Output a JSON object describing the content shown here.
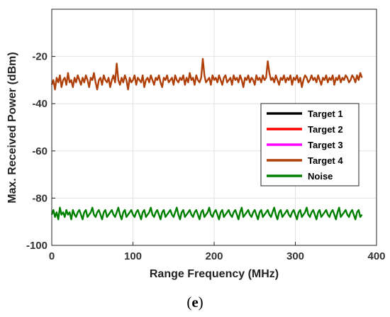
{
  "chart_data": {
    "type": "line",
    "xlabel": "Range Frequency (MHz)",
    "ylabel": "Max. Received Power (dBm)",
    "xlim": [
      0,
      400
    ],
    "ylim": [
      -100,
      0
    ],
    "xticks": [
      0,
      100,
      200,
      300,
      400
    ],
    "yticks": [
      -100,
      -80,
      -60,
      -40,
      -20
    ],
    "grid": true,
    "legend_position": "right",
    "series": [
      {
        "name": "Target 1",
        "color": "#000000",
        "values": []
      },
      {
        "name": "Target 2",
        "color": "#ff0000",
        "values": []
      },
      {
        "name": "Target 3",
        "color": "#ff00ff",
        "values": []
      },
      {
        "name": "Target 4",
        "color": "#b0400a",
        "x_step": 2,
        "values": [
          -32,
          -30,
          -34,
          -29,
          -31,
          -28,
          -33,
          -30,
          -29,
          -32,
          -27,
          -31,
          -30,
          -33,
          -29,
          -31,
          -28,
          -30,
          -32,
          -29,
          -31,
          -28,
          -30,
          -33,
          -29,
          -30,
          -27,
          -31,
          -34,
          -30,
          -29,
          -32,
          -28,
          -30,
          -31,
          -29,
          -33,
          -30,
          -28,
          -31,
          -23,
          -30,
          -32,
          -29,
          -31,
          -28,
          -30,
          -34,
          -29,
          -31,
          -30,
          -28,
          -32,
          -29,
          -30,
          -31,
          -28,
          -33,
          -30,
          -29,
          -31,
          -28,
          -30,
          -32,
          -29,
          -30,
          -28,
          -31,
          -33,
          -29,
          -30,
          -28,
          -31,
          -30,
          -29,
          -32,
          -28,
          -30,
          -31,
          -29,
          -30,
          -28,
          -32,
          -29,
          -31,
          -27,
          -30,
          -29,
          -32,
          -28,
          -30,
          -31,
          -29,
          -21,
          -28,
          -31,
          -30,
          -29,
          -32,
          -28,
          -30,
          -29,
          -31,
          -28,
          -30,
          -32,
          -29,
          -28,
          -31,
          -30,
          -29,
          -32,
          -28,
          -30,
          -29,
          -31,
          -28,
          -30,
          -33,
          -29,
          -30,
          -28,
          -31,
          -29,
          -30,
          -32,
          -28,
          -30,
          -29,
          -31,
          -28,
          -30,
          -29,
          -22,
          -27,
          -30,
          -29,
          -31,
          -28,
          -30,
          -32,
          -29,
          -30,
          -28,
          -31,
          -29,
          -30,
          -28,
          -32,
          -29,
          -30,
          -28,
          -31,
          -29,
          -33,
          -30,
          -28,
          -29,
          -31,
          -30,
          -28,
          -30,
          -29,
          -31,
          -28,
          -30,
          -32,
          -29,
          -30,
          -28,
          -31,
          -29,
          -30,
          -28,
          -32,
          -29,
          -30,
          -28,
          -31,
          -29,
          -30,
          -28,
          -29,
          -31,
          -30,
          -28,
          -29,
          -31,
          -28,
          -30,
          -27,
          -29
        ]
      },
      {
        "name": "Noise",
        "color": "#008000",
        "x_step": 2,
        "values": [
          -87,
          -85,
          -88,
          -86,
          -89,
          -84,
          -87,
          -86,
          -88,
          -85,
          -87,
          -86,
          -89,
          -85,
          -87,
          -88,
          -86,
          -85,
          -87,
          -89,
          -86,
          -85,
          -88,
          -87,
          -86,
          -84,
          -87,
          -88,
          -86,
          -85,
          -87,
          -89,
          -86,
          -85,
          -88,
          -87,
          -86,
          -85,
          -87,
          -88,
          -86,
          -84,
          -87,
          -89,
          -86,
          -85,
          -88,
          -87,
          -86,
          -85,
          -87,
          -88,
          -86,
          -85,
          -87,
          -89,
          -86,
          -85,
          -88,
          -87,
          -86,
          -84,
          -87,
          -88,
          -86,
          -85,
          -87,
          -89,
          -86,
          -85,
          -88,
          -87,
          -86,
          -85,
          -87,
          -88,
          -86,
          -84,
          -87,
          -89,
          -86,
          -85,
          -88,
          -87,
          -86,
          -85,
          -87,
          -88,
          -86,
          -85,
          -87,
          -89,
          -86,
          -85,
          -88,
          -87,
          -86,
          -84,
          -87,
          -88,
          -86,
          -85,
          -87,
          -89,
          -86,
          -85,
          -88,
          -87,
          -86,
          -85,
          -87,
          -88,
          -86,
          -85,
          -87,
          -89,
          -86,
          -84,
          -88,
          -87,
          -86,
          -85,
          -87,
          -88,
          -86,
          -85,
          -87,
          -89,
          -86,
          -85,
          -88,
          -87,
          -86,
          -85,
          -87,
          -88,
          -86,
          -84,
          -87,
          -89,
          -86,
          -85,
          -88,
          -87,
          -86,
          -85,
          -87,
          -88,
          -86,
          -85,
          -87,
          -89,
          -86,
          -85,
          -88,
          -87,
          -86,
          -84,
          -87,
          -88,
          -86,
          -85,
          -87,
          -89,
          -86,
          -85,
          -88,
          -87,
          -86,
          -85,
          -87,
          -88,
          -86,
          -85,
          -87,
          -89,
          -86,
          -84,
          -88,
          -87,
          -86,
          -85,
          -87,
          -88,
          -86,
          -85,
          -87,
          -89,
          -86,
          -85,
          -88,
          -87
        ]
      }
    ]
  },
  "caption": {
    "open": "(",
    "letter": "e",
    "close": ")"
  }
}
